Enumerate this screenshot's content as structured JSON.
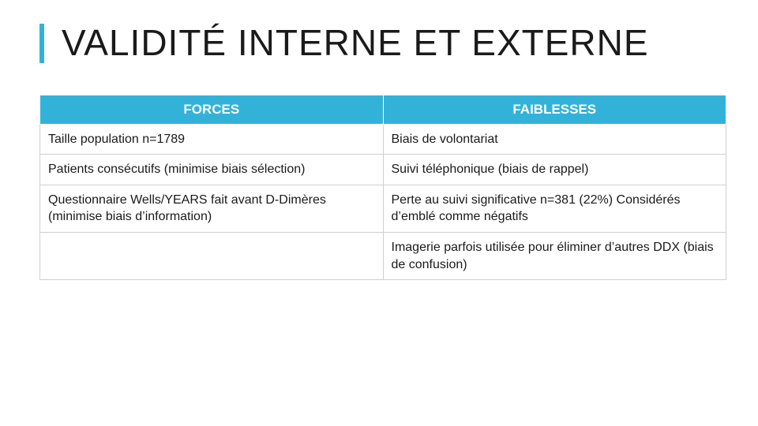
{
  "slide": {
    "title": "VALIDITÉ INTERNE ET EXTERNE",
    "title_fontsize": 46,
    "title_color": "#1a1a1a",
    "accent_color": "#33b2d9",
    "background_color": "#ffffff"
  },
  "table": {
    "type": "table",
    "header_bg": "#33b2d9",
    "header_text_color": "#ffffff",
    "cell_border_color": "#cfcfcf",
    "cell_text_color": "#1a1a1a",
    "header_fontsize": 17,
    "cell_fontsize": 16,
    "column_widths": [
      "50%",
      "50%"
    ],
    "columns": [
      "FORCES",
      "FAIBLESSES"
    ],
    "rows": [
      {
        "forces": "Taille population n=1789",
        "faiblesses": "Biais de volontariat"
      },
      {
        "forces": "Patients consécutifs (minimise biais sélection)",
        "faiblesses": "Suivi téléphonique (biais de rappel)"
      },
      {
        "forces": "Questionnaire Wells/YEARS fait avant D-Dimères (minimise biais d’information)",
        "faiblesses": "Perte au suivi significative n=381 (22%) Considérés d’emblé comme négatifs"
      },
      {
        "forces": "",
        "faiblesses": "Imagerie parfois utilisée pour éliminer d’autres DDX\n(biais de confusion)"
      }
    ]
  }
}
